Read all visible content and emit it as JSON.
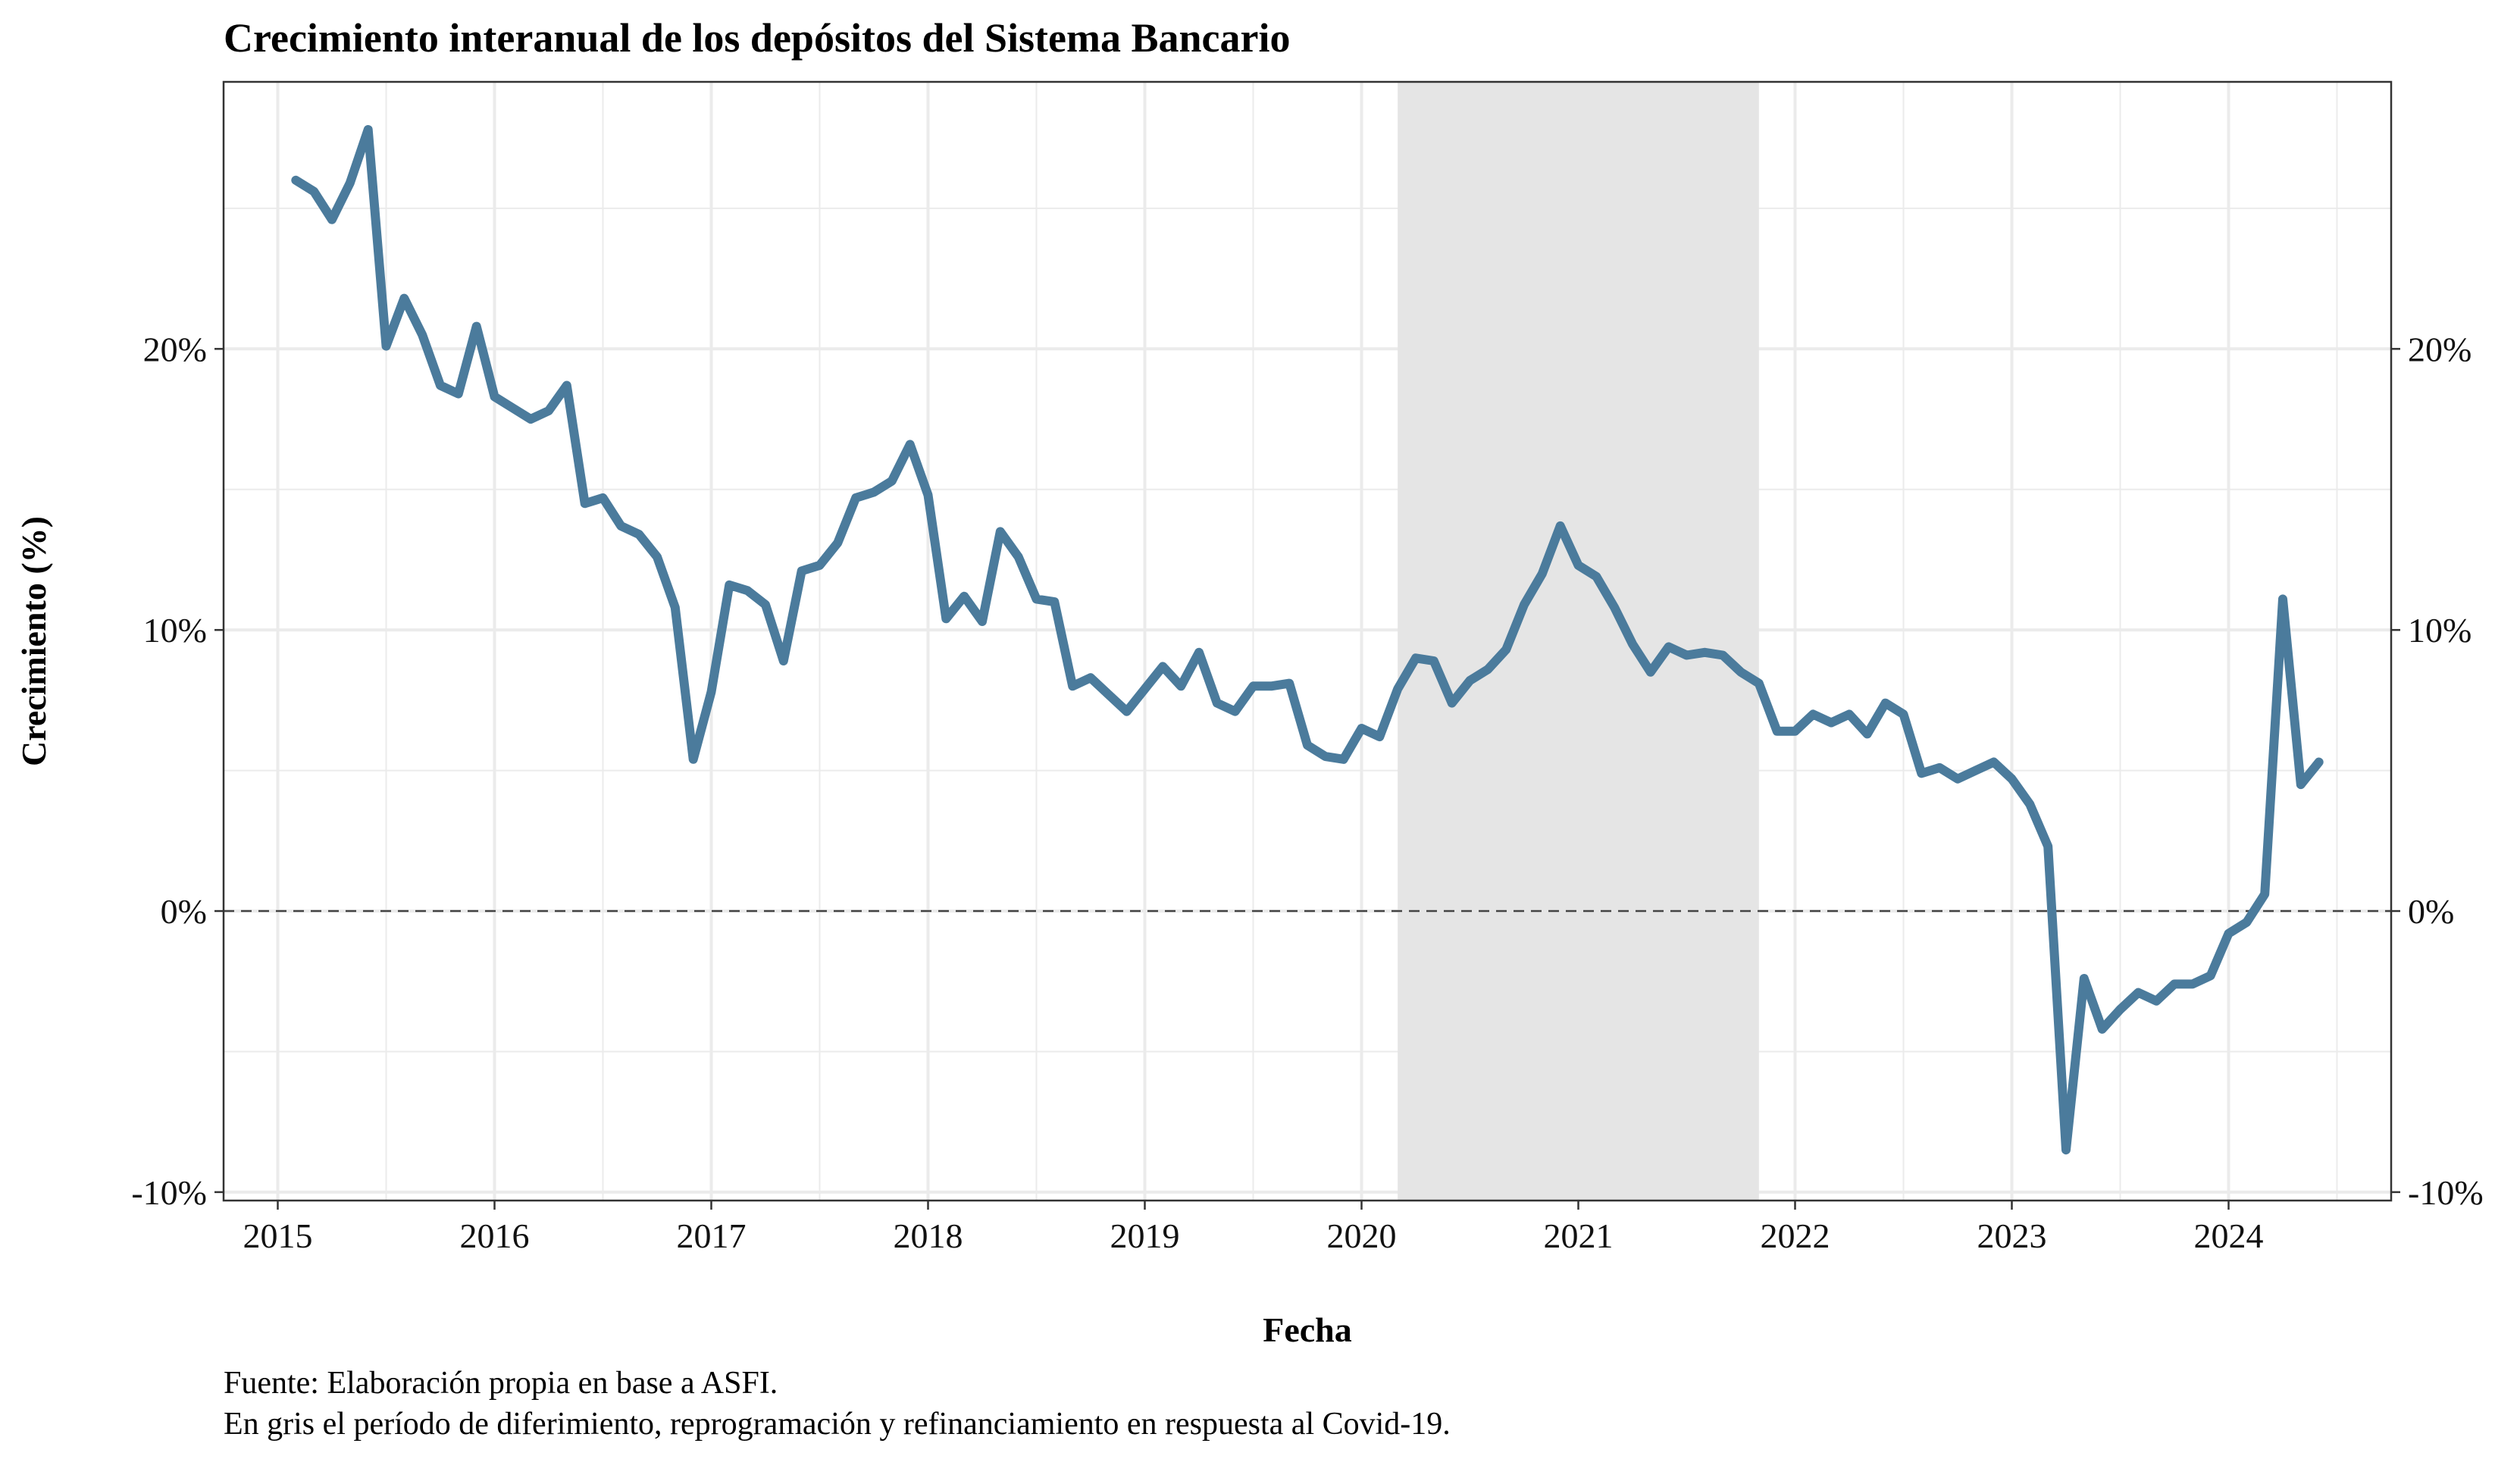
{
  "chart_data": {
    "type": "line",
    "title": "Crecimiento interanual de los depósitos del Sistema Bancario",
    "xlabel": "Fecha",
    "ylabel": "Crecimiento (%)",
    "caption_lines": [
      "Fuente: Elaboración propia en base a ASFI.",
      "En gris el período de diferimiento, reprogramación y refinanciamiento en respuesta al Covid-19."
    ],
    "x_ticks": [
      "2015",
      "2016",
      "2017",
      "2018",
      "2019",
      "2020",
      "2021",
      "2022",
      "2023",
      "2024"
    ],
    "y_ticks": [
      "-10%",
      "0%",
      "10%",
      "20%"
    ],
    "y_tick_values": [
      -10,
      0,
      10,
      20
    ],
    "xlim": [
      "2014-10",
      "2024-10"
    ],
    "ylim": [
      -10.3,
      29.5
    ],
    "shaded_period": [
      "2020-03",
      "2021-11"
    ],
    "reference_line": 0,
    "grid": true,
    "colors": {
      "line": "#4B7B9C",
      "shade": "#E5E5E5",
      "grid": "#EBEBEB",
      "reference": "#444444"
    },
    "series": [
      {
        "x": [
          "2015-02",
          "2015-03",
          "2015-04",
          "2015-05",
          "2015-06",
          "2015-07",
          "2015-08",
          "2015-09",
          "2015-10",
          "2015-11",
          "2015-12",
          "2016-01",
          "2016-02",
          "2016-03",
          "2016-04",
          "2016-05",
          "2016-06",
          "2016-07",
          "2016-08",
          "2016-09",
          "2016-10",
          "2016-11",
          "2016-12",
          "2017-01",
          "2017-02",
          "2017-03",
          "2017-04",
          "2017-05",
          "2017-06",
          "2017-07",
          "2017-08",
          "2017-09",
          "2017-10",
          "2017-11",
          "2017-12",
          "2018-01",
          "2018-02",
          "2018-03",
          "2018-04",
          "2018-05",
          "2018-06",
          "2018-07",
          "2018-08",
          "2018-09",
          "2018-10",
          "2018-11",
          "2018-12",
          "2019-01",
          "2019-02",
          "2019-03",
          "2019-04",
          "2019-05",
          "2019-06",
          "2019-07",
          "2019-08",
          "2019-09",
          "2019-10",
          "2019-11",
          "2019-12",
          "2020-01",
          "2020-02",
          "2020-03",
          "2020-04",
          "2020-05",
          "2020-06",
          "2020-07",
          "2020-08",
          "2020-09",
          "2020-10",
          "2020-11",
          "2020-12",
          "2021-01",
          "2021-02",
          "2021-03",
          "2021-04",
          "2021-05",
          "2021-06",
          "2021-07",
          "2021-08",
          "2021-09",
          "2021-10",
          "2021-11",
          "2021-12",
          "2022-01",
          "2022-02",
          "2022-03",
          "2022-04",
          "2022-05",
          "2022-06",
          "2022-07",
          "2022-08",
          "2022-09",
          "2022-10",
          "2022-11",
          "2022-12",
          "2023-01",
          "2023-02",
          "2023-03",
          "2023-04",
          "2023-05",
          "2023-06",
          "2023-07",
          "2023-08",
          "2023-09",
          "2023-10",
          "2023-11",
          "2023-12",
          "2024-01",
          "2024-02",
          "2024-03",
          "2024-04",
          "2024-05",
          "2024-06"
        ],
        "values": [
          26.0,
          25.6,
          24.6,
          25.9,
          27.8,
          20.1,
          21.8,
          20.5,
          18.7,
          18.4,
          20.8,
          18.3,
          17.9,
          17.5,
          17.8,
          18.7,
          14.5,
          14.7,
          13.7,
          13.4,
          12.6,
          10.8,
          5.4,
          7.8,
          11.6,
          11.4,
          10.9,
          8.9,
          12.1,
          12.3,
          13.1,
          14.7,
          14.9,
          15.3,
          16.6,
          14.8,
          10.4,
          11.2,
          10.3,
          13.5,
          12.6,
          11.1,
          11.0,
          8.0,
          8.3,
          7.7,
          7.1,
          7.9,
          8.7,
          8.0,
          9.2,
          7.4,
          7.1,
          8.0,
          8.0,
          8.1,
          5.9,
          5.5,
          5.4,
          6.5,
          6.2,
          7.9,
          9.0,
          8.9,
          7.4,
          8.2,
          8.6,
          9.3,
          10.9,
          12.0,
          13.7,
          12.3,
          11.9,
          10.8,
          9.5,
          8.5,
          9.4,
          9.1,
          9.2,
          9.1,
          8.5,
          8.1,
          6.4,
          6.4,
          7.0,
          6.7,
          7.0,
          6.3,
          7.4,
          7.0,
          4.9,
          5.1,
          4.7,
          5.0,
          5.3,
          4.7,
          3.8,
          2.3,
          -8.5,
          -2.4,
          -4.2,
          -3.5,
          -2.9,
          -3.2,
          -2.6,
          -2.6,
          -2.3,
          -0.8,
          -0.4,
          0.6,
          11.1,
          4.5,
          5.3
        ]
      }
    ]
  }
}
